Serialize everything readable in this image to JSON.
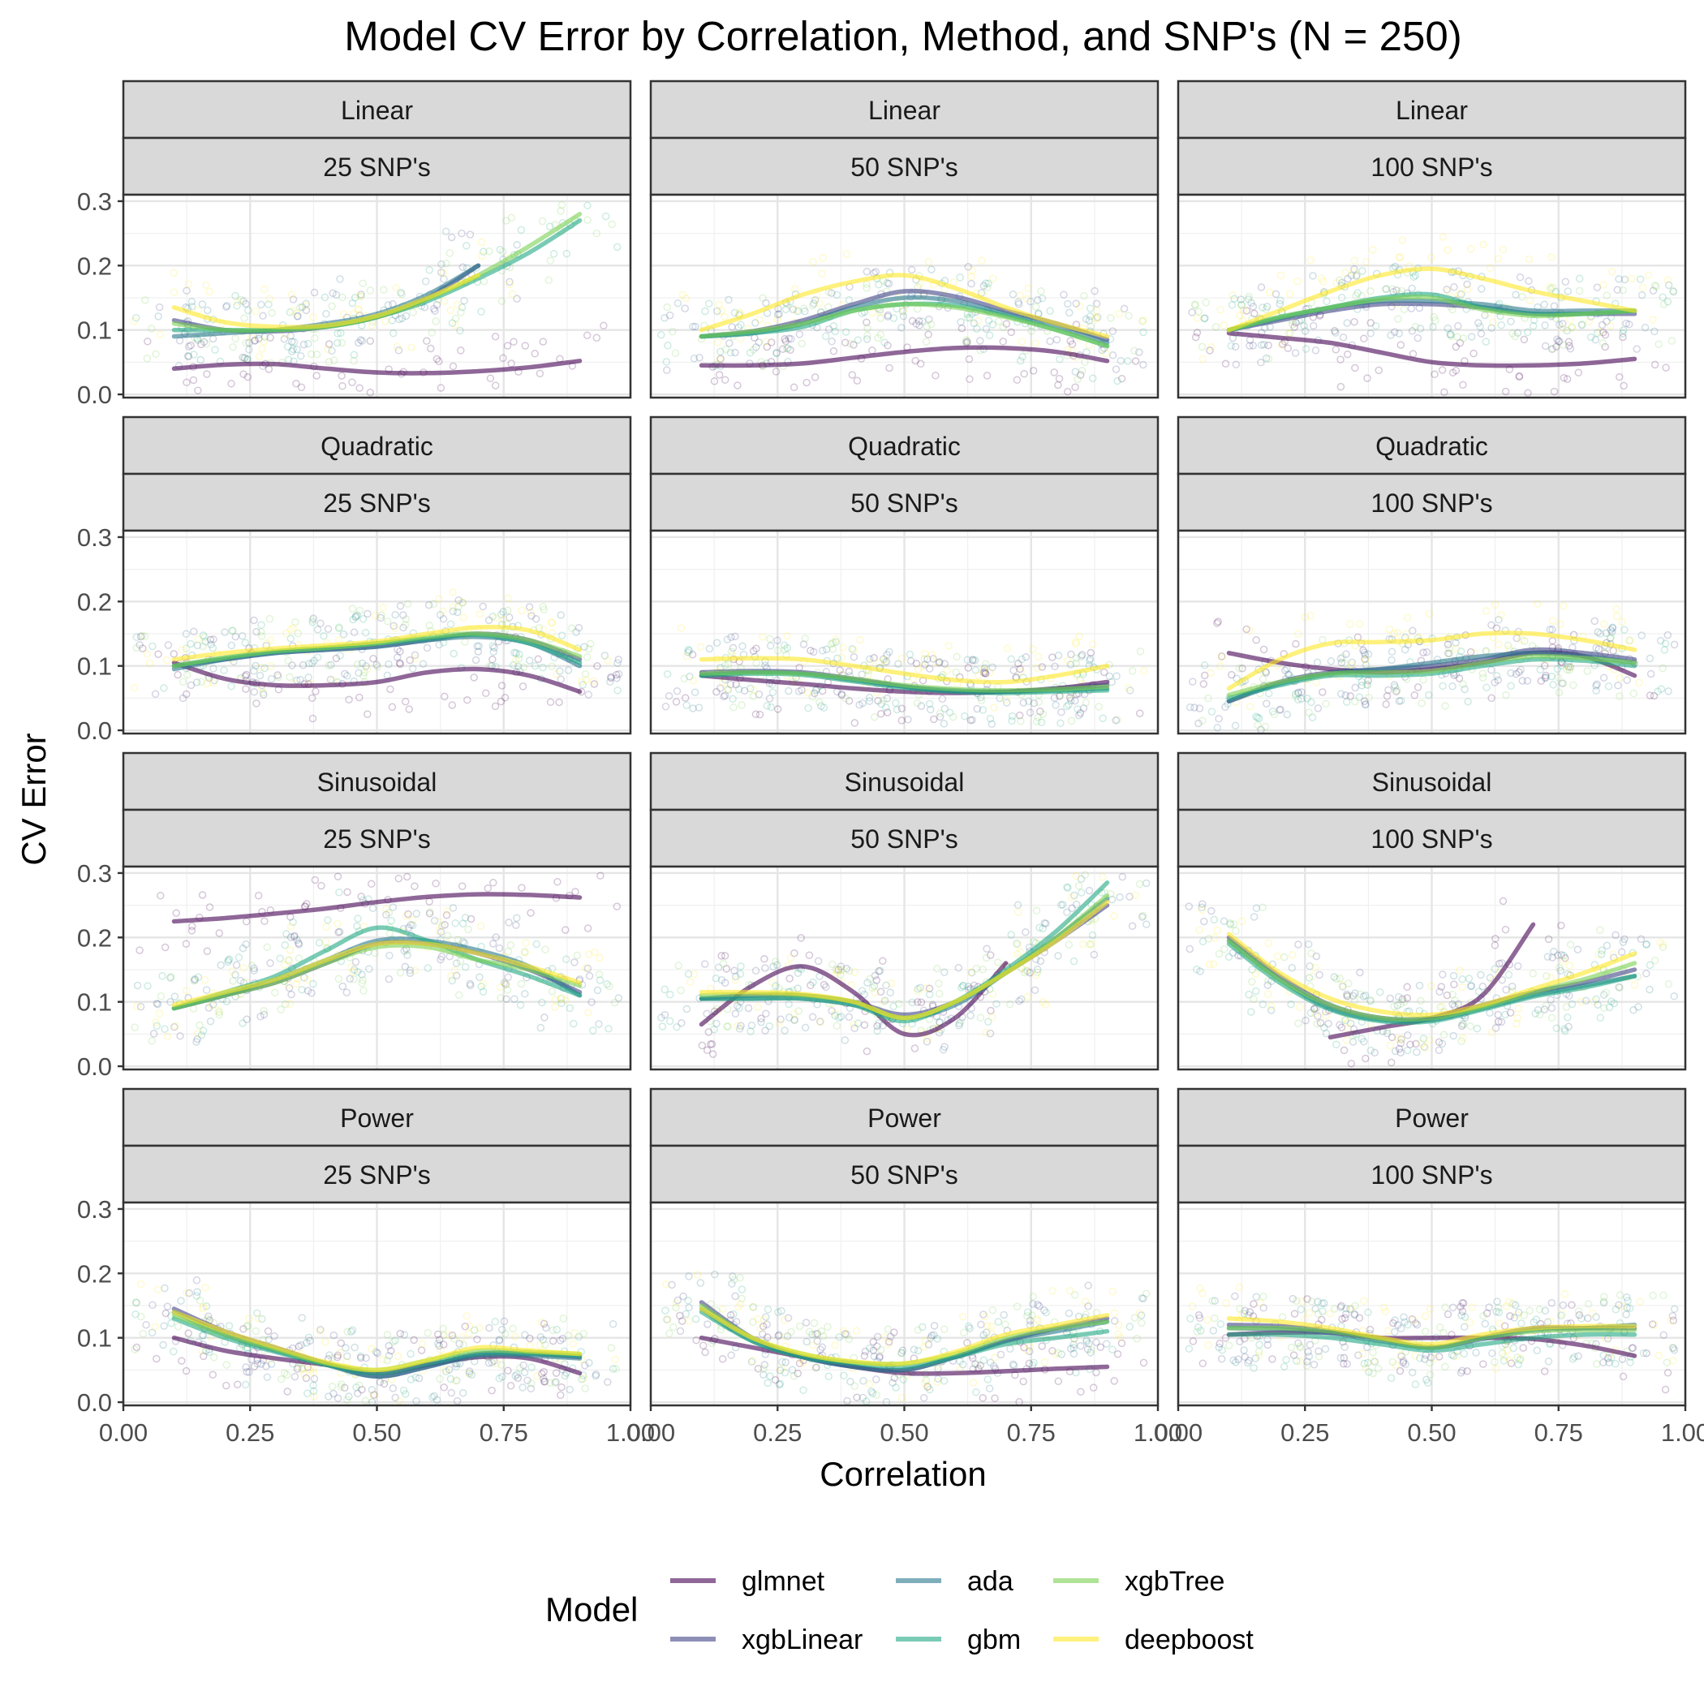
{
  "chart_data": {
    "type": "scatter",
    "title": "Model CV Error by Correlation, Method, and SNP's (N = 250)",
    "xlabel": "Correlation",
    "ylabel": "CV Error",
    "xlim": [
      0.0,
      1.0
    ],
    "ylim": [
      -0.005,
      0.31
    ],
    "x_ticks": [
      0.0,
      0.25,
      0.5,
      0.75,
      1.0
    ],
    "x_tick_labels": [
      "0.00",
      "0.25",
      "0.50",
      "0.75",
      "1.00"
    ],
    "y_ticks": [
      0.0,
      0.1,
      0.2,
      0.3
    ],
    "y_tick_labels": [
      "0.0",
      "0.1",
      "0.2",
      "0.3"
    ],
    "grid": true,
    "legend_title": "Model",
    "legend_position": "bottom",
    "series": [
      {
        "name": "glmnet",
        "color": "#440154"
      },
      {
        "name": "xgbLinear",
        "color": "#414487"
      },
      {
        "name": "ada",
        "color": "#2A788E"
      },
      {
        "name": "gbm",
        "color": "#22A884"
      },
      {
        "name": "xgbTree",
        "color": "#7AD151"
      },
      {
        "name": "deepboost",
        "color": "#FDE725"
      }
    ],
    "row_labels": [
      "Linear",
      "Quadratic",
      "Sinusoidal",
      "Power"
    ],
    "col_labels": [
      "25  SNP's",
      "50  SNP's",
      "100 SNP's"
    ],
    "smooth_x": [
      0.1,
      0.2,
      0.3,
      0.4,
      0.5,
      0.6,
      0.7,
      0.8,
      0.9
    ],
    "panels": [
      {
        "method": "Linear",
        "snps": "25  SNP's",
        "curves": {
          "glmnet": [
            0.04,
            0.046,
            0.047,
            0.04,
            0.034,
            0.033,
            0.036,
            0.042,
            0.052
          ],
          "xgbLinear": [
            0.115,
            0.1,
            0.098,
            0.105,
            0.12,
            0.15,
            0.2,
            null,
            null
          ],
          "ada": [
            0.09,
            0.095,
            0.1,
            0.11,
            0.125,
            0.155,
            0.2,
            null,
            null
          ],
          "gbm": [
            0.1,
            0.1,
            0.1,
            0.105,
            0.12,
            0.145,
            0.18,
            0.22,
            0.27
          ],
          "xgbTree": [
            0.11,
            0.1,
            0.1,
            0.105,
            0.12,
            0.148,
            0.185,
            0.23,
            0.28
          ],
          "deepboost": [
            0.135,
            0.112,
            0.105,
            0.107,
            0.122,
            0.15,
            0.185,
            null,
            null
          ]
        }
      },
      {
        "method": "Linear",
        "snps": "50  SNP's",
        "curves": {
          "glmnet": [
            0.045,
            0.045,
            0.048,
            0.057,
            0.066,
            0.072,
            0.072,
            0.066,
            0.052
          ],
          "xgbLinear": [
            0.09,
            0.098,
            0.115,
            0.14,
            0.16,
            0.152,
            0.13,
            0.11,
            0.085
          ],
          "ada": [
            0.09,
            0.095,
            0.11,
            0.135,
            0.15,
            0.145,
            0.125,
            0.105,
            0.08
          ],
          "gbm": [
            0.09,
            0.095,
            0.105,
            0.13,
            0.14,
            0.138,
            0.122,
            0.1,
            0.075
          ],
          "xgbTree": [
            0.09,
            0.098,
            0.11,
            0.13,
            0.14,
            0.135,
            0.12,
            0.1,
            0.075
          ],
          "deepboost": [
            0.1,
            0.125,
            0.155,
            0.175,
            0.185,
            0.165,
            0.135,
            0.11,
            0.09
          ]
        }
      },
      {
        "method": "Linear",
        "snps": "100 SNP's",
        "curves": {
          "glmnet": [
            0.095,
            0.088,
            0.08,
            0.065,
            0.05,
            0.045,
            0.045,
            0.048,
            0.055
          ],
          "xgbLinear": [
            0.1,
            0.115,
            0.13,
            0.14,
            0.14,
            0.135,
            0.125,
            0.125,
            0.125
          ],
          "ada": [
            0.1,
            0.118,
            0.135,
            0.145,
            0.145,
            0.14,
            0.13,
            0.13,
            0.13
          ],
          "gbm": [
            0.1,
            0.12,
            0.135,
            0.15,
            0.155,
            0.135,
            0.125,
            0.125,
            0.13
          ],
          "xgbTree": [
            0.1,
            0.12,
            0.135,
            0.148,
            0.15,
            0.132,
            0.122,
            0.125,
            0.13
          ],
          "deepboost": [
            0.1,
            0.13,
            0.16,
            0.185,
            0.195,
            0.18,
            0.16,
            0.145,
            0.13
          ]
        }
      },
      {
        "method": "Quadratic",
        "snps": "25  SNP's",
        "curves": {
          "glmnet": [
            0.105,
            0.08,
            0.07,
            0.07,
            0.075,
            0.09,
            0.095,
            0.085,
            0.06
          ],
          "xgbLinear": [
            0.1,
            0.11,
            0.12,
            0.125,
            0.13,
            0.14,
            0.15,
            0.14,
            0.11
          ],
          "ada": [
            0.095,
            0.11,
            0.12,
            0.125,
            0.13,
            0.14,
            0.145,
            0.135,
            0.1
          ],
          "gbm": [
            0.1,
            0.112,
            0.122,
            0.128,
            0.135,
            0.142,
            0.148,
            0.135,
            0.105
          ],
          "xgbTree": [
            0.1,
            0.113,
            0.123,
            0.128,
            0.135,
            0.145,
            0.15,
            0.14,
            0.115
          ],
          "deepboost": [
            0.11,
            0.12,
            0.127,
            0.132,
            0.138,
            0.15,
            0.16,
            0.155,
            0.125
          ]
        }
      },
      {
        "method": "Quadratic",
        "snps": "50  SNP's",
        "curves": {
          "glmnet": [
            0.085,
            0.078,
            0.072,
            0.065,
            0.06,
            0.058,
            0.06,
            0.065,
            0.075
          ],
          "xgbLinear": [
            0.09,
            0.092,
            0.09,
            0.08,
            0.068,
            0.06,
            0.06,
            0.065,
            0.07
          ],
          "ada": [
            0.085,
            0.09,
            0.088,
            0.078,
            0.068,
            0.062,
            0.06,
            0.062,
            0.065
          ],
          "gbm": [
            0.085,
            0.088,
            0.086,
            0.076,
            0.066,
            0.06,
            0.058,
            0.06,
            0.062
          ],
          "xgbTree": [
            0.088,
            0.09,
            0.088,
            0.08,
            0.07,
            0.064,
            0.062,
            0.064,
            0.068
          ],
          "deepboost": [
            0.11,
            0.112,
            0.11,
            0.1,
            0.088,
            0.078,
            0.075,
            0.085,
            0.1
          ]
        }
      },
      {
        "method": "Quadratic",
        "snps": "100 SNP's",
        "curves": {
          "glmnet": [
            0.12,
            0.105,
            0.095,
            0.09,
            0.095,
            0.105,
            0.12,
            0.115,
            0.085
          ],
          "xgbLinear": [
            0.045,
            0.075,
            0.09,
            0.095,
            0.1,
            0.11,
            0.125,
            0.12,
            0.11
          ],
          "ada": [
            0.045,
            0.072,
            0.088,
            0.095,
            0.105,
            0.115,
            0.12,
            0.115,
            0.105
          ],
          "gbm": [
            0.05,
            0.07,
            0.085,
            0.085,
            0.088,
            0.1,
            0.11,
            0.108,
            0.1
          ],
          "xgbTree": [
            0.055,
            0.075,
            0.088,
            0.09,
            0.092,
            0.105,
            0.115,
            0.112,
            0.105
          ],
          "deepboost": [
            0.065,
            0.11,
            0.135,
            0.137,
            0.14,
            0.15,
            0.15,
            0.14,
            0.125
          ]
        }
      },
      {
        "method": "Sinusoidal",
        "snps": "25  SNP's",
        "curves": {
          "glmnet": [
            0.225,
            0.23,
            0.237,
            0.245,
            0.255,
            0.263,
            0.267,
            0.266,
            0.262
          ],
          "xgbLinear": [
            0.09,
            0.11,
            0.13,
            0.16,
            0.19,
            0.19,
            0.175,
            0.15,
            0.115
          ],
          "ada": [
            0.09,
            0.11,
            0.135,
            0.165,
            0.195,
            0.195,
            0.18,
            0.155,
            0.11
          ],
          "gbm": [
            0.09,
            0.115,
            0.14,
            0.18,
            0.215,
            0.195,
            0.165,
            0.14,
            0.11
          ],
          "xgbTree": [
            0.09,
            0.11,
            0.13,
            0.16,
            0.185,
            0.185,
            0.165,
            0.15,
            0.125
          ],
          "deepboost": [
            0.095,
            0.115,
            0.135,
            0.165,
            0.19,
            0.19,
            0.175,
            0.155,
            0.13
          ]
        }
      },
      {
        "method": "Sinusoidal",
        "snps": "50  SNP's",
        "curves": {
          "glmnet": [
            0.065,
            0.125,
            0.155,
            0.115,
            0.05,
            0.075,
            0.16,
            null,
            null
          ],
          "xgbLinear": [
            0.105,
            0.11,
            0.11,
            0.1,
            0.08,
            0.1,
            0.145,
            0.195,
            0.25
          ],
          "ada": [
            0.105,
            0.105,
            0.105,
            0.095,
            0.075,
            0.095,
            0.145,
            0.2,
            0.26
          ],
          "gbm": [
            0.105,
            0.105,
            0.105,
            0.095,
            0.07,
            0.1,
            0.15,
            0.21,
            0.285
          ],
          "xgbTree": [
            0.11,
            0.112,
            0.11,
            0.1,
            0.075,
            0.1,
            0.145,
            0.2,
            0.265
          ],
          "deepboost": [
            0.115,
            0.115,
            0.112,
            0.1,
            0.075,
            0.1,
            0.145,
            0.195,
            0.255
          ]
        }
      },
      {
        "method": "Sinusoidal",
        "snps": "100 SNP's",
        "curves": {
          "glmnet": [
            null,
            null,
            0.045,
            0.06,
            0.075,
            0.11,
            0.22,
            null,
            null
          ],
          "xgbLinear": [
            0.2,
            0.14,
            0.095,
            0.075,
            0.075,
            0.095,
            0.115,
            0.13,
            0.15
          ],
          "ada": [
            0.195,
            0.135,
            0.09,
            0.072,
            0.072,
            0.09,
            0.11,
            0.125,
            0.14
          ],
          "gbm": [
            0.19,
            0.13,
            0.088,
            0.07,
            0.07,
            0.088,
            0.108,
            0.122,
            0.14
          ],
          "xgbTree": [
            0.195,
            0.135,
            0.095,
            0.075,
            0.075,
            0.092,
            0.115,
            0.135,
            0.16
          ],
          "deepboost": [
            0.205,
            0.145,
            0.105,
            0.085,
            0.08,
            0.095,
            0.12,
            0.145,
            0.175
          ]
        }
      },
      {
        "method": "Power",
        "snps": "25  SNP's",
        "curves": {
          "glmnet": [
            0.1,
            0.08,
            0.068,
            0.058,
            0.045,
            0.058,
            0.07,
            0.068,
            0.045
          ],
          "xgbLinear": [
            0.145,
            0.11,
            0.085,
            0.06,
            0.04,
            0.055,
            0.075,
            0.075,
            0.07
          ],
          "ada": [
            0.14,
            0.105,
            0.08,
            0.058,
            0.04,
            0.055,
            0.072,
            0.072,
            0.068
          ],
          "gbm": [
            0.13,
            0.1,
            0.078,
            0.058,
            0.045,
            0.06,
            0.075,
            0.075,
            0.072
          ],
          "xgbTree": [
            0.135,
            0.105,
            0.082,
            0.06,
            0.05,
            0.065,
            0.08,
            0.078,
            0.075
          ],
          "deepboost": [
            0.14,
            0.11,
            0.085,
            0.062,
            0.05,
            0.065,
            0.085,
            0.08,
            0.075
          ]
        }
      },
      {
        "method": "Power",
        "snps": "50  SNP's",
        "curves": {
          "glmnet": [
            0.1,
            0.085,
            0.07,
            0.055,
            0.045,
            0.045,
            0.048,
            0.052,
            0.055
          ],
          "xgbLinear": [
            0.155,
            0.1,
            0.07,
            0.055,
            0.05,
            0.07,
            0.095,
            0.115,
            0.13
          ],
          "ada": [
            0.145,
            0.095,
            0.07,
            0.055,
            0.05,
            0.07,
            0.095,
            0.11,
            0.125
          ],
          "gbm": [
            0.14,
            0.095,
            0.07,
            0.06,
            0.055,
            0.07,
            0.09,
            0.1,
            0.11
          ],
          "xgbTree": [
            0.15,
            0.1,
            0.075,
            0.062,
            0.06,
            0.075,
            0.1,
            0.115,
            0.125
          ],
          "deepboost": [
            0.145,
            0.1,
            0.075,
            0.063,
            0.06,
            0.078,
            0.105,
            0.12,
            0.135
          ]
        }
      },
      {
        "method": "Power",
        "snps": "100 SNP's",
        "curves": {
          "glmnet": [
            0.105,
            0.108,
            0.108,
            0.1,
            0.1,
            0.1,
            0.098,
            0.088,
            0.072
          ],
          "xgbLinear": [
            0.12,
            0.118,
            0.11,
            0.098,
            0.085,
            0.1,
            0.115,
            0.115,
            0.115
          ],
          "ada": [
            0.115,
            0.113,
            0.107,
            0.095,
            0.085,
            0.098,
            0.112,
            0.115,
            0.12
          ],
          "gbm": [
            0.105,
            0.105,
            0.1,
            0.09,
            0.08,
            0.09,
            0.1,
            0.105,
            0.105
          ],
          "xgbTree": [
            0.115,
            0.115,
            0.11,
            0.098,
            0.085,
            0.1,
            0.11,
            0.112,
            0.112
          ],
          "deepboost": [
            0.13,
            0.125,
            0.115,
            0.1,
            0.09,
            0.105,
            0.115,
            0.118,
            0.118
          ]
        }
      }
    ]
  }
}
